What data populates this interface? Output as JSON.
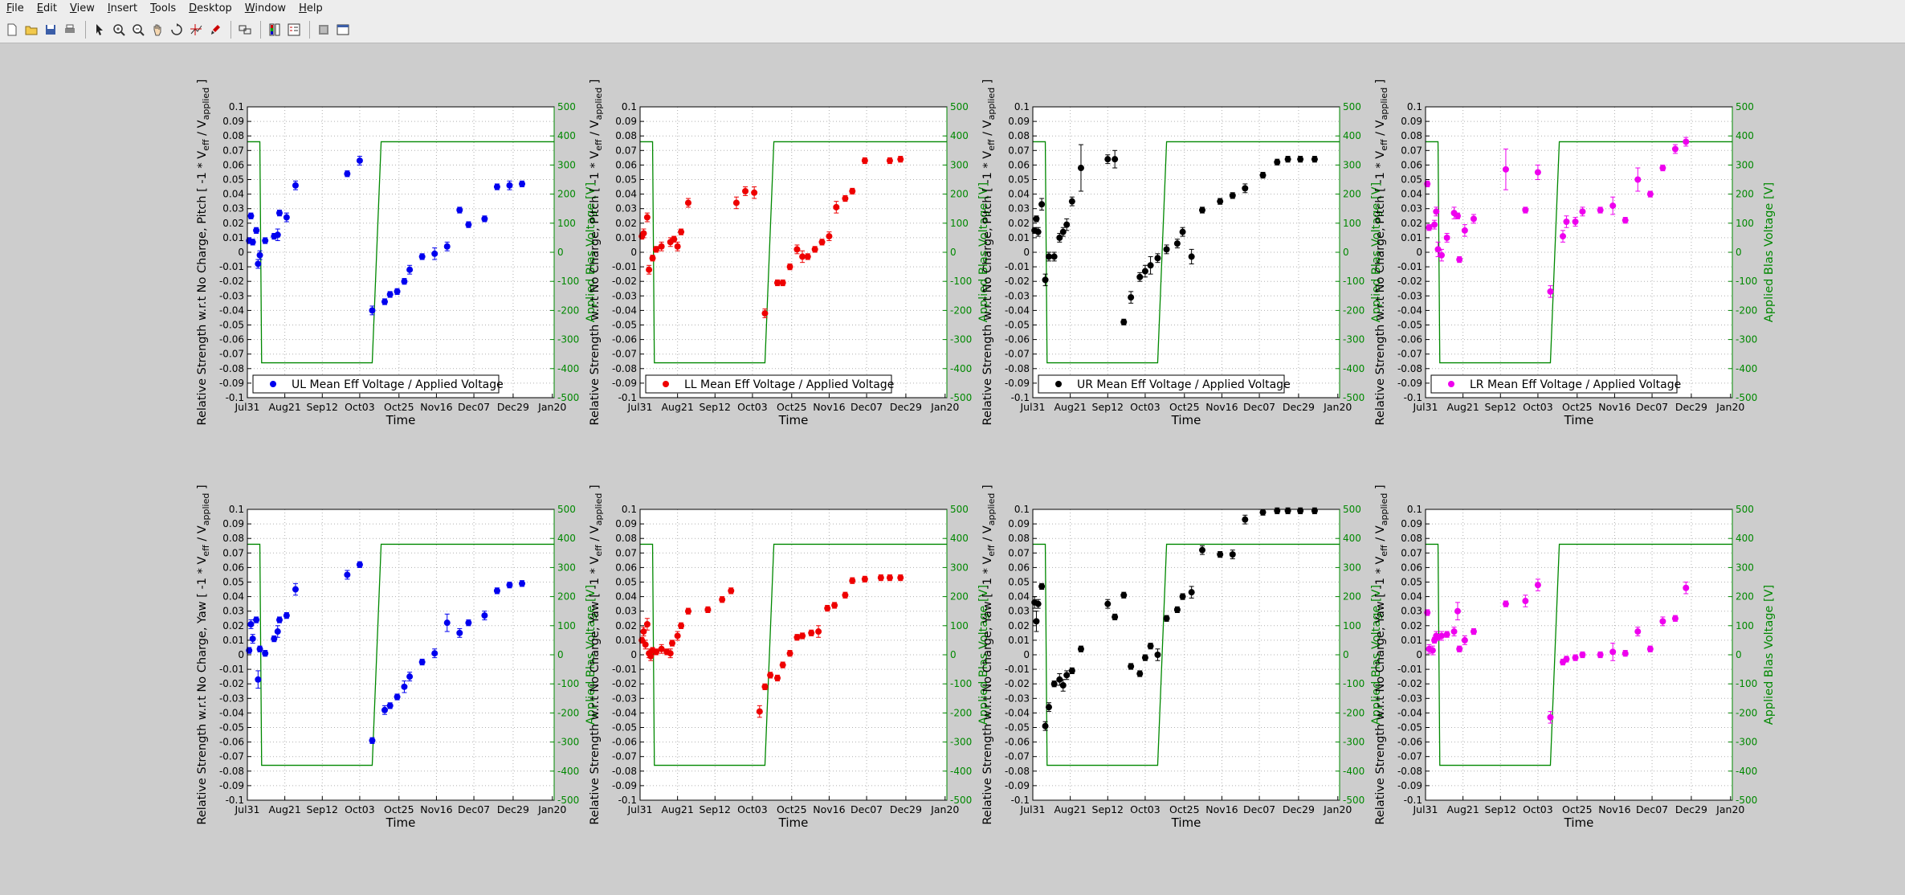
{
  "menu": [
    "File",
    "Edit",
    "View",
    "Insert",
    "Tools",
    "Desktop",
    "Window",
    "Help"
  ],
  "toolbar_icons": [
    "new-file-icon",
    "open-folder-icon",
    "save-icon",
    "print-icon",
    "|",
    "pointer-icon",
    "zoom-in-icon",
    "zoom-out-icon",
    "pan-hand-icon",
    "rotate-icon",
    "data-cursor-icon",
    "brush-icon",
    "|",
    "link-axes-icon",
    "|",
    "colorbar-icon",
    "legend-icon",
    "|",
    "hide-tools-icon",
    "dock-icon"
  ],
  "colors": {
    "UL": "#0000ee",
    "LL": "#ee0000",
    "UR": "#000000",
    "LR": "#ee00ee",
    "bias": "#008800"
  },
  "chart_data": [
    {
      "type": "scatter",
      "corner": "UL",
      "ylabel": "Relative Strength w.r.t No Charge, Pitch [ -1 * V",
      "ylabel_sub1": "eff",
      "ylabel_mid": " / V",
      "ylabel_sub2": "applied",
      "ylabel_end": " ]",
      "y2label": "Applied Blas Voltage [V]",
      "xlabel": "Time",
      "legend": "UL Mean Eff Voltage / Applied Voltage",
      "x": [
        1,
        2,
        3,
        5,
        6,
        7,
        10,
        15,
        17,
        18,
        22,
        27,
        56,
        63,
        70,
        77,
        80,
        84,
        88,
        91,
        98,
        105,
        112,
        119,
        124,
        133,
        140,
        147,
        154
      ],
      "y": [
        0.008,
        0.025,
        0.007,
        0.015,
        -0.008,
        -0.002,
        0.008,
        0.011,
        0.012,
        0.027,
        0.024,
        0.046,
        0.054,
        0.063,
        -0.04,
        -0.034,
        -0.029,
        -0.027,
        -0.02,
        -0.012,
        -0.003,
        -0.001,
        0.004,
        0.029,
        0.019,
        0.023,
        0.045,
        0.046,
        0.047
      ],
      "err": [
        0.002,
        0.002,
        0.002,
        0.002,
        0.003,
        0.003,
        0.002,
        0.002,
        0.004,
        0.002,
        0.003,
        0.003,
        0.002,
        0.003,
        0.003,
        0.002,
        0.002,
        0.002,
        0.002,
        0.003,
        0.002,
        0.004,
        0.003,
        0.002,
        0.002,
        0.002,
        0.002,
        0.003,
        0.002
      ]
    },
    {
      "type": "scatter",
      "corner": "LL",
      "ylabel": "Relative Strength w.r.t No Charge, Pitch [ -1 * V",
      "ylabel_sub1": "eff",
      "ylabel_mid": " / V",
      "ylabel_sub2": "applied",
      "ylabel_end": " ]",
      "y2label": "Applied Blas Voltage [V]",
      "xlabel": "Time",
      "legend": "LL Mean Eff Voltage / Applied Voltage",
      "x": [
        1,
        2,
        4,
        5,
        7,
        9,
        12,
        17,
        19,
        21,
        23,
        27,
        54,
        59,
        64,
        70,
        77,
        80,
        84,
        88,
        91,
        94,
        98,
        102,
        106,
        110,
        115,
        119,
        126,
        140,
        146
      ],
      "y": [
        0.011,
        0.013,
        0.024,
        -0.012,
        -0.004,
        0.002,
        0.004,
        0.007,
        0.009,
        0.004,
        0.014,
        0.034,
        0.034,
        0.042,
        0.041,
        -0.042,
        -0.021,
        -0.021,
        -0.01,
        0.002,
        -0.003,
        -0.003,
        0.002,
        0.007,
        0.011,
        0.031,
        0.037,
        0.042,
        0.063,
        0.063,
        0.064
      ],
      "err": [
        0.002,
        0.003,
        0.003,
        0.003,
        0.002,
        0.002,
        0.003,
        0.003,
        0.002,
        0.003,
        0.002,
        0.003,
        0.004,
        0.003,
        0.004,
        0.003,
        0.002,
        0.002,
        0.002,
        0.003,
        0.004,
        0.002,
        0.002,
        0.002,
        0.003,
        0.004,
        0.002,
        0.002,
        0.002,
        0.002,
        0.002
      ]
    },
    {
      "type": "scatter",
      "corner": "UR",
      "ylabel": "Relative Strength w.r.t No Charge, Pitch [ -1 * V",
      "ylabel_sub1": "eff",
      "ylabel_mid": " / V",
      "ylabel_sub2": "applied",
      "ylabel_end": " ]",
      "y2label": "Applied Blas Voltage [V]",
      "xlabel": "Time",
      "legend": "UR Mean Eff Voltage / Applied Voltage",
      "x": [
        1,
        2,
        3,
        5,
        7,
        9,
        12,
        15,
        17,
        19,
        22,
        27,
        42,
        46,
        51,
        55,
        60,
        63,
        66,
        70,
        75,
        81,
        84,
        89,
        95,
        105,
        112,
        119,
        129,
        137,
        143,
        150,
        158
      ],
      "y": [
        0.015,
        0.023,
        0.014,
        0.033,
        -0.019,
        -0.003,
        -0.003,
        0.01,
        0.014,
        0.019,
        0.035,
        0.058,
        0.064,
        0.064,
        -0.048,
        -0.031,
        -0.017,
        -0.013,
        -0.009,
        -0.004,
        0.002,
        0.006,
        0.014,
        -0.003,
        0.029,
        0.035,
        0.039,
        0.044,
        0.053,
        0.062,
        0.064,
        0.064,
        0.064
      ],
      "err": [
        0.002,
        0.002,
        0.003,
        0.004,
        0.004,
        0.003,
        0.003,
        0.003,
        0.003,
        0.004,
        0.003,
        0.016,
        0.003,
        0.006,
        0.002,
        0.004,
        0.003,
        0.004,
        0.006,
        0.003,
        0.003,
        0.003,
        0.003,
        0.005,
        0.002,
        0.002,
        0.002,
        0.003,
        0.002,
        0.002,
        0.002,
        0.002,
        0.002
      ]
    },
    {
      "type": "scatter",
      "corner": "LR",
      "ylabel": "Relative Strength w.r.t No Charge, Pitch [ -1 * V",
      "ylabel_sub1": "eff",
      "ylabel_mid": " / V",
      "ylabel_sub2": "applied",
      "ylabel_end": " ]",
      "y2label": "Applied Blas Voltage [V]",
      "xlabel": "Time",
      "legend": "LR Mean Eff Voltage / Applied Voltage",
      "x": [
        1,
        2,
        5,
        6,
        7,
        9,
        12,
        16,
        18,
        19,
        22,
        27,
        45,
        56,
        63,
        70,
        77,
        79,
        84,
        88,
        98,
        105,
        112,
        119,
        126,
        133,
        140,
        146
      ],
      "y": [
        0.047,
        0.017,
        0.019,
        0.028,
        0.002,
        -0.002,
        0.01,
        0.027,
        0.025,
        -0.005,
        0.015,
        0.023,
        0.057,
        0.029,
        0.055,
        -0.027,
        0.011,
        0.021,
        0.021,
        0.028,
        0.029,
        0.032,
        0.022,
        0.05,
        0.04,
        0.058,
        0.071,
        0.076
      ],
      "err": [
        0.002,
        0.002,
        0.003,
        0.003,
        0.005,
        0.004,
        0.003,
        0.004,
        0.002,
        0.002,
        0.004,
        0.003,
        0.014,
        0.002,
        0.005,
        0.004,
        0.004,
        0.004,
        0.003,
        0.003,
        0.002,
        0.006,
        0.002,
        0.008,
        0.002,
        0.002,
        0.003,
        0.003
      ]
    },
    {
      "type": "scatter",
      "corner": "UL",
      "ylabel": "Relative Strength w.r.t No Charge, Yaw [ -1 * V",
      "ylabel_sub1": "eff",
      "ylabel_mid": " / V",
      "ylabel_sub2": "applied",
      "ylabel_end": " ]",
      "y2label": "Applied Blas Voltage [V]",
      "xlabel": "Time",
      "legend": "",
      "x": [
        1,
        2,
        3,
        5,
        6,
        7,
        10,
        15,
        17,
        18,
        22,
        27,
        56,
        63,
        70,
        77,
        80,
        84,
        88,
        91,
        98,
        105,
        112,
        119,
        124,
        133,
        140,
        147,
        154
      ],
      "y": [
        0.003,
        0.021,
        0.011,
        0.024,
        -0.017,
        0.004,
        0.001,
        0.011,
        0.016,
        0.024,
        0.027,
        0.045,
        0.055,
        0.062,
        -0.059,
        -0.038,
        -0.035,
        -0.029,
        -0.022,
        -0.015,
        -0.005,
        0.001,
        0.022,
        0.015,
        0.022,
        0.027,
        0.044,
        0.048,
        0.049
      ],
      "err": [
        0.002,
        0.003,
        0.003,
        0.002,
        0.006,
        0.002,
        0.002,
        0.002,
        0.004,
        0.002,
        0.002,
        0.004,
        0.003,
        0.002,
        0.002,
        0.003,
        0.002,
        0.002,
        0.004,
        0.003,
        0.002,
        0.003,
        0.006,
        0.003,
        0.002,
        0.003,
        0.002,
        0.002,
        0.002
      ]
    },
    {
      "type": "scatter",
      "corner": "LL",
      "ylabel": "Relative Strength w.r.t No Charge, Yaw [ -1 * V",
      "ylabel_sub1": "eff",
      "ylabel_mid": " / V",
      "ylabel_sub2": "applied",
      "ylabel_end": " ]",
      "y2label": "Applied Blas Voltage [V]",
      "xlabel": "Time",
      "legend": "",
      "x": [
        1,
        2,
        3,
        4,
        5,
        6,
        7,
        9,
        12,
        15,
        17,
        18,
        21,
        23,
        27,
        38,
        46,
        51,
        67,
        70,
        73,
        77,
        80,
        84,
        88,
        91,
        96,
        100,
        105,
        109,
        115,
        119,
        126,
        135,
        140,
        146
      ],
      "y": [
        0.01,
        0.016,
        0.007,
        0.021,
        0.001,
        -0.001,
        0.003,
        0.002,
        0.004,
        0.002,
        0.001,
        0.008,
        0.013,
        0.02,
        0.03,
        0.031,
        0.038,
        0.044,
        -0.039,
        -0.022,
        -0.014,
        -0.016,
        -0.007,
        0.001,
        0.012,
        0.013,
        0.015,
        0.016,
        0.032,
        0.034,
        0.041,
        0.051,
        0.052,
        0.053,
        0.053,
        0.053
      ],
      "err": [
        0.002,
        0.003,
        0.003,
        0.004,
        0.003,
        0.003,
        0.002,
        0.002,
        0.003,
        0.002,
        0.003,
        0.002,
        0.003,
        0.002,
        0.002,
        0.002,
        0.002,
        0.002,
        0.004,
        0.002,
        0.002,
        0.002,
        0.002,
        0.002,
        0.002,
        0.002,
        0.002,
        0.004,
        0.002,
        0.002,
        0.002,
        0.002,
        0.002,
        0.002,
        0.002,
        0.002
      ]
    },
    {
      "type": "scatter",
      "corner": "UR",
      "ylabel": "Relative Strength w.r.t No Charge, Yaw [ -1 * V",
      "ylabel_sub1": "eff",
      "ylabel_mid": " / V",
      "ylabel_sub2": "applied",
      "ylabel_end": " ]",
      "y2label": "Applied Blas Voltage [V]",
      "xlabel": "Time",
      "legend": "",
      "x": [
        1,
        2,
        3,
        5,
        7,
        9,
        12,
        15,
        17,
        19,
        22,
        27,
        42,
        46,
        51,
        55,
        60,
        63,
        66,
        70,
        75,
        81,
        84,
        89,
        95,
        105,
        112,
        119,
        129,
        137,
        143,
        150,
        158
      ],
      "y": [
        0.036,
        0.023,
        0.035,
        0.047,
        -0.049,
        -0.036,
        -0.02,
        -0.017,
        -0.021,
        -0.014,
        -0.011,
        0.004,
        0.035,
        0.026,
        0.041,
        -0.008,
        -0.013,
        -0.002,
        0.006,
        0.0,
        0.025,
        0.031,
        0.04,
        0.043,
        0.072,
        0.069,
        0.069,
        0.093,
        0.098,
        0.099,
        0.099,
        0.099,
        0.099
      ],
      "err": [
        0.004,
        0.007,
        0.003,
        0.002,
        0.003,
        0.003,
        0.002,
        0.004,
        0.004,
        0.003,
        0.002,
        0.002,
        0.003,
        0.002,
        0.002,
        0.002,
        0.002,
        0.002,
        0.002,
        0.004,
        0.002,
        0.002,
        0.002,
        0.004,
        0.003,
        0.002,
        0.003,
        0.003,
        0.002,
        0.002,
        0.002,
        0.002,
        0.002
      ]
    },
    {
      "type": "scatter",
      "corner": "LR",
      "ylabel": "Relative Strength w.r.t No Charge, Yaw [ -1 * V",
      "ylabel_sub1": "eff",
      "ylabel_mid": " / V",
      "ylabel_sub2": "applied",
      "ylabel_end": " ]",
      "y2label": "Applied Blas Voltage [V]",
      "xlabel": "Time",
      "legend": "",
      "x": [
        1,
        2,
        4,
        5,
        6,
        7,
        9,
        12,
        16,
        18,
        19,
        22,
        27,
        45,
        56,
        63,
        70,
        77,
        79,
        84,
        88,
        98,
        105,
        112,
        119,
        126,
        133,
        140,
        146
      ],
      "y": [
        0.029,
        0.004,
        0.003,
        0.01,
        0.013,
        0.012,
        0.013,
        0.014,
        0.016,
        0.03,
        0.004,
        0.01,
        0.016,
        0.035,
        0.037,
        0.048,
        -0.043,
        -0.005,
        -0.003,
        -0.002,
        0.0,
        0.0,
        0.002,
        0.001,
        0.016,
        0.004,
        0.023,
        0.025,
        0.046
      ],
      "err": [
        0.002,
        0.003,
        0.003,
        0.002,
        0.003,
        0.002,
        0.003,
        0.002,
        0.003,
        0.006,
        0.002,
        0.003,
        0.002,
        0.002,
        0.004,
        0.004,
        0.004,
        0.002,
        0.002,
        0.002,
        0.002,
        0.002,
        0.006,
        0.002,
        0.003,
        0.002,
        0.003,
        0.002,
        0.004
      ]
    }
  ],
  "x_axis": {
    "xlim": [
      0,
      172
    ],
    "tick_values": [
      0,
      21,
      42,
      63,
      85,
      106,
      127,
      149,
      171
    ],
    "tick_labels": [
      "Jul31",
      "Aug21",
      "Sep12",
      "Oct03",
      "Oct25",
      "Nov16",
      "Dec07",
      "Dec29",
      "Jan20"
    ]
  },
  "y_axis": {
    "ylim": [
      -0.1,
      0.1
    ],
    "step": 0.01,
    "tick_labels": [
      "-0.1",
      "-0.09",
      "-0.08",
      "-0.07",
      "-0.06",
      "-0.05",
      "-0.04",
      "-0.03",
      "-0.02",
      "-0.01",
      "0",
      "0.01",
      "0.02",
      "0.03",
      "0.04",
      "0.05",
      "0.06",
      "0.07",
      "0.08",
      "0.09",
      "0.1"
    ]
  },
  "y2_axis": {
    "ylim": [
      -500,
      500
    ],
    "tick_labels": [
      "-500",
      "-400",
      "-300",
      "-200",
      "-100",
      "0",
      "100",
      "200",
      "300",
      "400",
      "500"
    ]
  },
  "bias_voltage": {
    "x": [
      0,
      7,
      8,
      70,
      75,
      172
    ],
    "y": [
      380,
      380,
      -380,
      -380,
      380,
      380
    ]
  },
  "grid": true
}
